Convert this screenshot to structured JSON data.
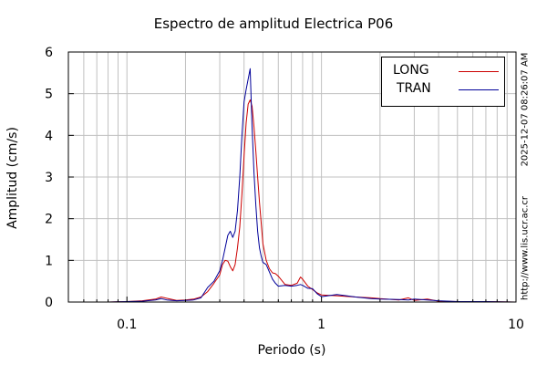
{
  "chart_data": {
    "type": "line",
    "title": "Espectro de amplitud Electrica P06",
    "xlabel": "Periodo (s)",
    "ylabel": "Amplitud (cm/s)",
    "x_scale": "log",
    "xlim": [
      0.05,
      10
    ],
    "ylim": [
      0,
      6
    ],
    "grid": true,
    "legend_position": "top-right",
    "x_ticks": [
      {
        "value": 0.1,
        "label": "0.1"
      },
      {
        "value": 1,
        "label": "1"
      },
      {
        "value": 10,
        "label": "10"
      }
    ],
    "y_ticks": [
      {
        "value": 0,
        "label": "0"
      },
      {
        "value": 1,
        "label": "1"
      },
      {
        "value": 2,
        "label": "2"
      },
      {
        "value": 3,
        "label": "3"
      },
      {
        "value": 4,
        "label": "4"
      },
      {
        "value": 5,
        "label": "5"
      },
      {
        "value": 6,
        "label": "6"
      }
    ],
    "series": [
      {
        "name": "LONG",
        "color": "#cc0000",
        "points": [
          [
            0.05,
            0
          ],
          [
            0.08,
            0
          ],
          [
            0.1,
            0.01
          ],
          [
            0.12,
            0.03
          ],
          [
            0.14,
            0.07
          ],
          [
            0.15,
            0.12
          ],
          [
            0.16,
            0.09
          ],
          [
            0.18,
            0.04
          ],
          [
            0.2,
            0.05
          ],
          [
            0.22,
            0.07
          ],
          [
            0.24,
            0.12
          ],
          [
            0.26,
            0.25
          ],
          [
            0.28,
            0.45
          ],
          [
            0.3,
            0.65
          ],
          [
            0.31,
            0.9
          ],
          [
            0.32,
            1.0
          ],
          [
            0.33,
            0.98
          ],
          [
            0.34,
            0.85
          ],
          [
            0.35,
            0.75
          ],
          [
            0.36,
            0.9
          ],
          [
            0.37,
            1.3
          ],
          [
            0.38,
            1.8
          ],
          [
            0.39,
            2.6
          ],
          [
            0.4,
            3.5
          ],
          [
            0.41,
            4.3
          ],
          [
            0.42,
            4.75
          ],
          [
            0.43,
            4.85
          ],
          [
            0.44,
            4.7
          ],
          [
            0.45,
            4.2
          ],
          [
            0.46,
            3.6
          ],
          [
            0.47,
            3.0
          ],
          [
            0.48,
            2.4
          ],
          [
            0.49,
            1.9
          ],
          [
            0.5,
            1.4
          ],
          [
            0.52,
            1.0
          ],
          [
            0.54,
            0.8
          ],
          [
            0.56,
            0.7
          ],
          [
            0.58,
            0.68
          ],
          [
            0.6,
            0.62
          ],
          [
            0.65,
            0.42
          ],
          [
            0.7,
            0.4
          ],
          [
            0.75,
            0.45
          ],
          [
            0.78,
            0.6
          ],
          [
            0.8,
            0.55
          ],
          [
            0.85,
            0.38
          ],
          [
            0.9,
            0.3
          ],
          [
            0.95,
            0.22
          ],
          [
            1.0,
            0.17
          ],
          [
            1.2,
            0.15
          ],
          [
            1.5,
            0.12
          ],
          [
            1.8,
            0.1
          ],
          [
            2.0,
            0.08
          ],
          [
            2.5,
            0.05
          ],
          [
            2.8,
            0.1
          ],
          [
            3.0,
            0.04
          ],
          [
            3.5,
            0.07
          ],
          [
            4,
            0.02
          ],
          [
            5,
            0.01
          ],
          [
            7,
            0.01
          ],
          [
            10,
            0
          ]
        ]
      },
      {
        "name": "TRAN",
        "color": "#000099",
        "points": [
          [
            0.05,
            0
          ],
          [
            0.08,
            0
          ],
          [
            0.1,
            0.01
          ],
          [
            0.12,
            0.02
          ],
          [
            0.14,
            0.05
          ],
          [
            0.15,
            0.08
          ],
          [
            0.16,
            0.05
          ],
          [
            0.18,
            0.03
          ],
          [
            0.2,
            0.04
          ],
          [
            0.22,
            0.05
          ],
          [
            0.24,
            0.1
          ],
          [
            0.26,
            0.35
          ],
          [
            0.28,
            0.5
          ],
          [
            0.3,
            0.75
          ],
          [
            0.31,
            1.0
          ],
          [
            0.32,
            1.3
          ],
          [
            0.33,
            1.6
          ],
          [
            0.34,
            1.7
          ],
          [
            0.35,
            1.55
          ],
          [
            0.36,
            1.7
          ],
          [
            0.37,
            2.2
          ],
          [
            0.38,
            3.0
          ],
          [
            0.39,
            4.0
          ],
          [
            0.4,
            4.8
          ],
          [
            0.41,
            5.1
          ],
          [
            0.42,
            5.35
          ],
          [
            0.43,
            5.6
          ],
          [
            0.44,
            4.2
          ],
          [
            0.45,
            3.1
          ],
          [
            0.46,
            2.3
          ],
          [
            0.47,
            1.7
          ],
          [
            0.48,
            1.3
          ],
          [
            0.49,
            1.1
          ],
          [
            0.5,
            0.95
          ],
          [
            0.52,
            0.9
          ],
          [
            0.54,
            0.72
          ],
          [
            0.56,
            0.55
          ],
          [
            0.58,
            0.45
          ],
          [
            0.6,
            0.38
          ],
          [
            0.65,
            0.4
          ],
          [
            0.7,
            0.38
          ],
          [
            0.75,
            0.4
          ],
          [
            0.78,
            0.42
          ],
          [
            0.8,
            0.4
          ],
          [
            0.85,
            0.33
          ],
          [
            0.9,
            0.32
          ],
          [
            0.95,
            0.2
          ],
          [
            1.0,
            0.13
          ],
          [
            1.2,
            0.18
          ],
          [
            1.5,
            0.12
          ],
          [
            1.8,
            0.08
          ],
          [
            2.0,
            0.07
          ],
          [
            2.5,
            0.06
          ],
          [
            2.8,
            0.05
          ],
          [
            3.0,
            0.07
          ],
          [
            3.5,
            0.05
          ],
          [
            4,
            0.03
          ],
          [
            5,
            0.01
          ],
          [
            7,
            0.01
          ],
          [
            10,
            0
          ]
        ]
      }
    ],
    "side_labels": {
      "timestamp": "2025-12-07 08:26:07 AM",
      "url": "http://www.lis.ucr.ac.cr"
    }
  }
}
